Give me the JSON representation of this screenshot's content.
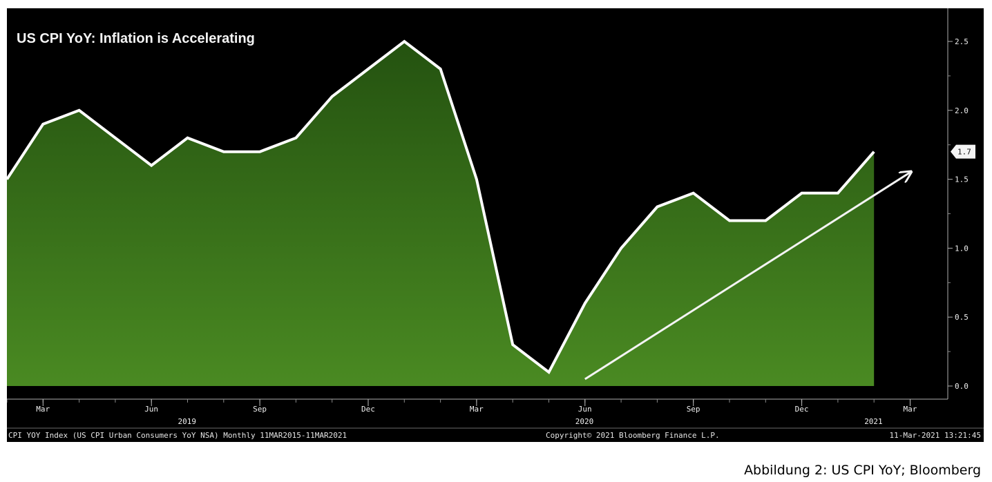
{
  "chart_data": {
    "type": "area",
    "title": "US CPI YoY: Inflation is Accelerating",
    "x": [
      "2019-02",
      "2019-03",
      "2019-04",
      "2019-05",
      "2019-06",
      "2019-07",
      "2019-08",
      "2019-09",
      "2019-10",
      "2019-11",
      "2019-12",
      "2020-01",
      "2020-02",
      "2020-03",
      "2020-04",
      "2020-05",
      "2020-06",
      "2020-07",
      "2020-08",
      "2020-09",
      "2020-10",
      "2020-11",
      "2020-12",
      "2021-01",
      "2021-02"
    ],
    "series": [
      {
        "values": [
          1.5,
          1.9,
          2.0,
          1.8,
          1.6,
          1.8,
          1.7,
          1.7,
          1.8,
          2.1,
          2.3,
          2.5,
          2.3,
          1.5,
          0.3,
          0.1,
          0.6,
          1.0,
          1.3,
          1.4,
          1.2,
          1.2,
          1.4,
          1.4,
          1.7
        ]
      }
    ],
    "last_value_label": "1.7",
    "ylim": [
      -0.05,
      2.75
    ],
    "y_ticks": [
      "0.0",
      "0.5",
      "1.0",
      "1.5",
      "2.0",
      "2.5"
    ],
    "y_axis_side": "right",
    "x_tick_labels": [
      {
        "label": "Mar",
        "date": "2019-03"
      },
      {
        "label": "Jun",
        "date": "2019-06"
      },
      {
        "label": "Sep",
        "date": "2019-09"
      },
      {
        "label": "Dec",
        "date": "2019-12"
      },
      {
        "label": "Mar",
        "date": "2020-03"
      },
      {
        "label": "Jun",
        "date": "2020-06"
      },
      {
        "label": "Sep",
        "date": "2020-09"
      },
      {
        "label": "Dec",
        "date": "2020-12"
      },
      {
        "label": "Mar",
        "date": "2021-03"
      }
    ],
    "x_year_labels": [
      {
        "label": "2019",
        "date": "2019-07"
      },
      {
        "label": "2020",
        "date": "2020-06"
      },
      {
        "label": "2021",
        "date": "2021-02"
      }
    ],
    "trend_arrow": {
      "from": {
        "x": "2020-06",
        "y": 0.05
      },
      "to": {
        "x": "2021-03",
        "y": 1.55
      }
    },
    "grid": false,
    "colors": {
      "background": "#000000",
      "area_top": "#245210",
      "area_bottom": "#4a8a22",
      "line": "#ffffff",
      "text": "#f0f0f0"
    }
  },
  "footer": {
    "left": "CPI YOY Index (US CPI Urban Consumers YoY NSA) Monthly 11MAR2015-11MAR2021",
    "center": "Copyright© 2021 Bloomberg Finance L.P.",
    "right": "11-Mar-2021 13:21:45"
  },
  "caption": "Abbildung 2: US CPI YoY; Bloomberg"
}
